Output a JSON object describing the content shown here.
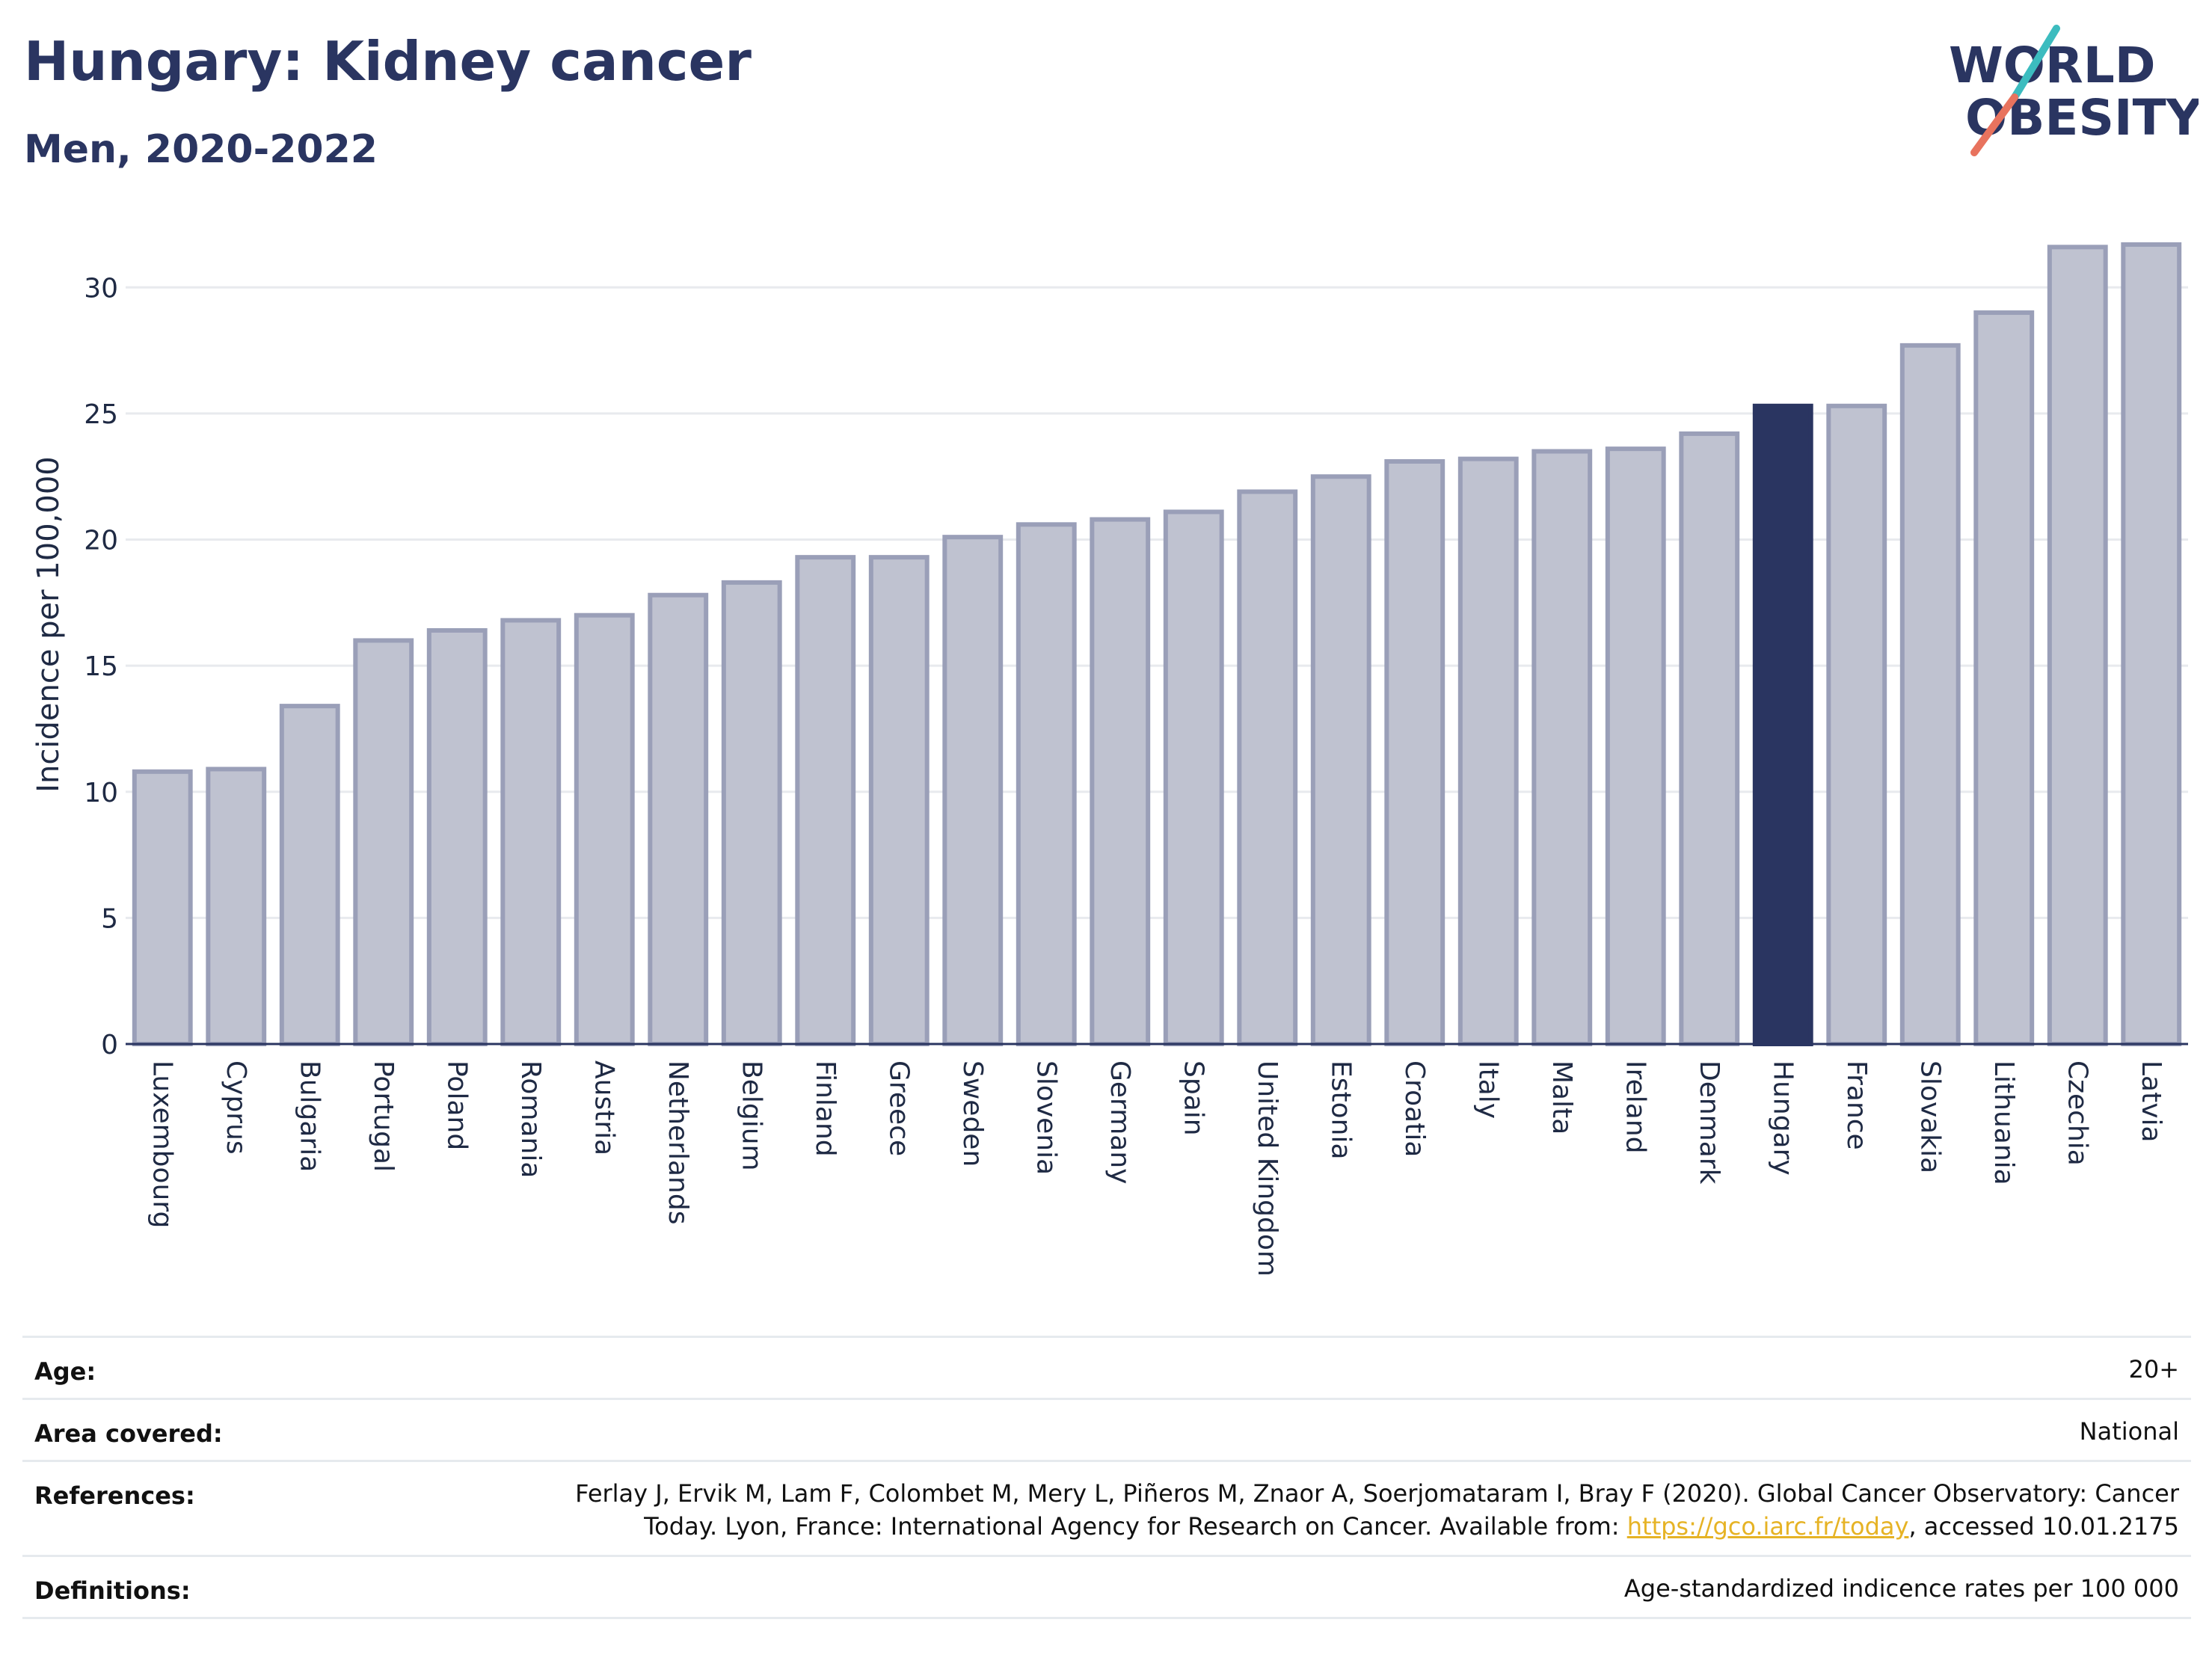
{
  "header": {
    "title": "Hungary: Kidney cancer",
    "subtitle": "Men, 2020-2022"
  },
  "logo": {
    "line1": "WORLD",
    "line2": "OBESITY"
  },
  "colors": {
    "bar": "#bfc2d0",
    "bar_border": "#9a9fb8",
    "highlight": "#2a3561",
    "grid": "#e8eaee",
    "logo_text": "#2a3561",
    "logo_teal": "#3cbcbf",
    "logo_coral": "#e8735e",
    "link": "#e6b325"
  },
  "chart_data": {
    "type": "bar",
    "categories": [
      "Luxembourg",
      "Cyprus",
      "Bulgaria",
      "Portugal",
      "Poland",
      "Romania",
      "Austria",
      "Netherlands",
      "Belgium",
      "Finland",
      "Greece",
      "Sweden",
      "Slovenia",
      "Germany",
      "Spain",
      "United Kingdom",
      "Estonia",
      "Croatia",
      "Italy",
      "Malta",
      "Ireland",
      "Denmark",
      "Hungary",
      "France",
      "Slovakia",
      "Lithuania",
      "Czechia",
      "Latvia"
    ],
    "values": [
      10.8,
      10.9,
      13.4,
      16.0,
      16.4,
      16.8,
      17.0,
      17.8,
      18.3,
      19.3,
      19.3,
      20.1,
      20.6,
      20.8,
      21.1,
      21.9,
      22.5,
      23.1,
      23.2,
      23.5,
      23.6,
      24.2,
      25.3,
      25.3,
      27.7,
      29.0,
      31.6,
      31.7
    ],
    "highlight": "Hungary",
    "xlabel": "",
    "ylabel": "Incidence per 100,000",
    "ylim": [
      0,
      32.5
    ],
    "yticks": [
      0,
      5,
      10,
      15,
      20,
      25,
      30
    ],
    "grid": true
  },
  "meta": {
    "age_label": "Age:",
    "age_value": "20+",
    "area_label": "Area covered:",
    "area_value": "National",
    "references_label": "References:",
    "references_line1": "Ferlay J, Ervik M, Lam F, Colombet M, Mery L, Piñeros M, Znaor A, Soerjomataram I, Bray F (2020). Global Cancer Observatory: Cancer",
    "references_line2_pre": "Today. Lyon, France: International Agency for Research on Cancer. Available from: ",
    "references_link": "https://gco.iarc.fr/today",
    "references_line2_post": ", accessed 10.01.2175",
    "definitions_label": "Definitions:",
    "definitions_value": "Age-standardized indicence rates per 100 000"
  }
}
